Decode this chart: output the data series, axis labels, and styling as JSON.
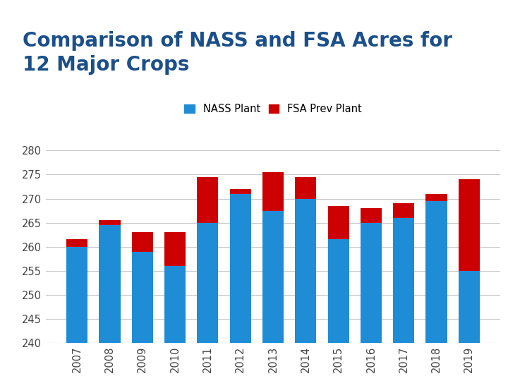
{
  "years": [
    "2007",
    "2008",
    "2009",
    "2010",
    "2011",
    "2012",
    "2013",
    "2014",
    "2015",
    "2016",
    "2017",
    "2018",
    "2019"
  ],
  "nass_values": [
    260.0,
    264.5,
    259.0,
    256.0,
    265.0,
    271.0,
    267.5,
    270.0,
    261.5,
    265.0,
    266.0,
    269.5,
    255.0
  ],
  "fsa_additions": [
    1.5,
    1.0,
    4.0,
    7.0,
    9.5,
    1.0,
    8.0,
    4.5,
    7.0,
    3.0,
    3.0,
    1.5,
    19.0
  ],
  "nass_color": "#1F8DD6",
  "fsa_color": "#CC0000",
  "title_line1": "Comparison of NASS and FSA Acres for",
  "title_line2": "12 Major Crops",
  "legend_nass": "NASS Plant",
  "legend_fsa": "FSA Prev Plant",
  "ylim_min": 240,
  "ylim_max": 282,
  "yticks": [
    240,
    245,
    250,
    255,
    260,
    265,
    270,
    275,
    280
  ],
  "title_color": "#1B4F8A",
  "header_color": "#4DC3E8",
  "bg_color": "#FFFFFF",
  "title_fontsize": 20,
  "bar_width": 0.65
}
